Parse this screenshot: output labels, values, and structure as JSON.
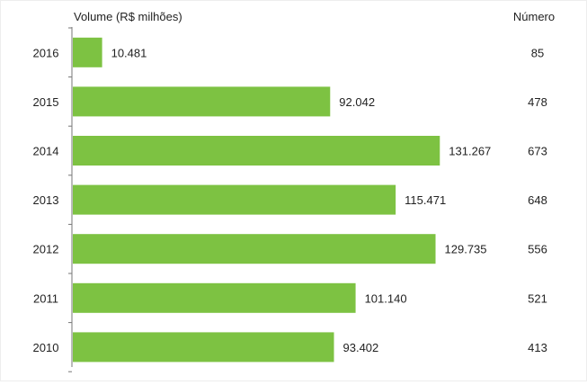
{
  "chart_data": {
    "type": "bar",
    "orientation": "horizontal",
    "categories": [
      "2016",
      "2015",
      "2014",
      "2013",
      "2012",
      "2011",
      "2010"
    ],
    "values": [
      10481,
      92042,
      131267,
      115471,
      129735,
      101140,
      93402
    ],
    "value_labels": [
      "10.481",
      "92.042",
      "131.267",
      "115.471",
      "129.735",
      "101.140",
      "93.402"
    ],
    "secondary_header": "Número",
    "secondary_values": [
      "85",
      "478",
      "673",
      "648",
      "556",
      "521",
      "413"
    ],
    "value_axis_label": "Volume (R$ milhões)",
    "xlim": [
      0,
      145000
    ],
    "grid": false,
    "legend": "none",
    "colors": {
      "bar": "#7dc242",
      "axis": "#777777",
      "text": "#222222"
    }
  }
}
